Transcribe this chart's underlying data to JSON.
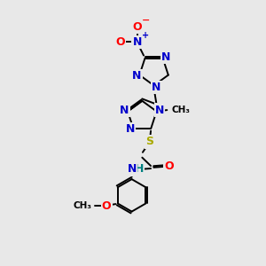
{
  "background_color": "#e8e8e8",
  "atom_colors": {
    "N": "#0000cc",
    "O": "#ff0000",
    "S": "#aaaa00",
    "H": "#008080",
    "C": "#000000"
  },
  "bond_color": "#000000",
  "lw": 1.4,
  "fs": 9.0,
  "fs_small": 7.5
}
